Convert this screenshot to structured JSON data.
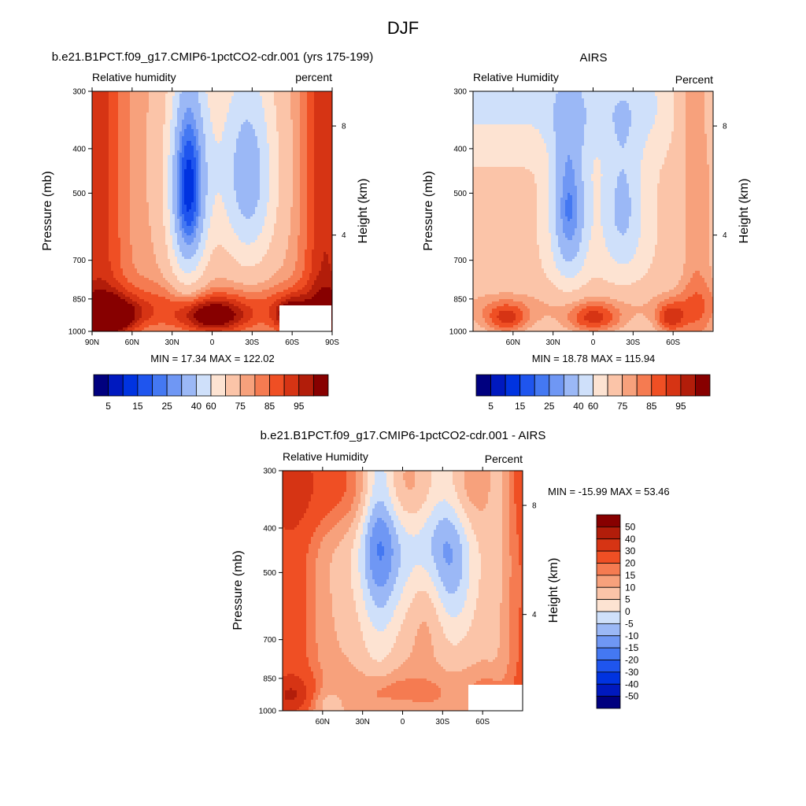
{
  "figure_title": "DJF",
  "colors": {
    "abs_scale": [
      "#00007f",
      "#0019bf",
      "#0033e0",
      "#1f55ee",
      "#4478f2",
      "#6f97f4",
      "#9bb8f6",
      "#cfe0fa",
      "#fde3d2",
      "#fbc4a8",
      "#f7a17c",
      "#f57b51",
      "#ef4f24",
      "#d63414",
      "#b21d0a",
      "#870000"
    ],
    "diff_scale": [
      "#00007f",
      "#0019bf",
      "#0033e0",
      "#1f55ee",
      "#4478f2",
      "#6f97f4",
      "#9bb8f6",
      "#cfe0fa",
      "#fde3d2",
      "#fbc4a8",
      "#f7a17c",
      "#f57b51",
      "#ef4f24",
      "#d63414",
      "#b21d0a",
      "#870000"
    ]
  },
  "chart_data": [
    {
      "type": "heatmap",
      "title": "b.e21.B1PCT.f09_g17.CMIP6-1pctCO2-cdr.001 (yrs 175-199)",
      "left_label": "Relative humidity",
      "right_label": "percent",
      "ylabel": "Pressure (mb)",
      "ylabel_right": "Height (km)",
      "x_ticks": [
        "90N",
        "60N",
        "30N",
        "0",
        "30S",
        "60S",
        "90S"
      ],
      "y_ticks": [
        "300",
        "400",
        "500",
        "700",
        "850",
        "1000"
      ],
      "y_right_ticks": [
        "8",
        "4"
      ],
      "stats": "MIN =  17.34  MAX = 122.02",
      "min": 17.34,
      "max": 122.02,
      "colorbar_labels": [
        "5",
        "15",
        "25",
        "40",
        "60",
        "75",
        "85",
        "95"
      ],
      "colorbar_orientation": "horizontal"
    },
    {
      "type": "heatmap",
      "title": "AIRS",
      "left_label": "Relative Humidity",
      "right_label": "Percent",
      "ylabel": "Pressure (mb)",
      "ylabel_right": "Height (km)",
      "x_ticks": [
        "60N",
        "30N",
        "0",
        "30S",
        "60S"
      ],
      "y_ticks": [
        "300",
        "400",
        "500",
        "700",
        "850",
        "1000"
      ],
      "y_right_ticks": [
        "8",
        "4"
      ],
      "stats": "MIN =  18.78  MAX = 115.94",
      "min": 18.78,
      "max": 115.94,
      "colorbar_labels": [
        "5",
        "15",
        "25",
        "40",
        "60",
        "75",
        "85",
        "95"
      ],
      "colorbar_orientation": "horizontal"
    },
    {
      "type": "heatmap",
      "title": "b.e21.B1PCT.f09_g17.CMIP6-1pctCO2-cdr.001 - AIRS",
      "left_label": "Relative Humidity",
      "right_label": "Percent",
      "ylabel": "Pressure (mb)",
      "ylabel_right": "Height (km)",
      "x_ticks": [
        "60N",
        "30N",
        "0",
        "30S",
        "60S"
      ],
      "y_ticks": [
        "300",
        "400",
        "500",
        "700",
        "850",
        "1000"
      ],
      "y_right_ticks": [
        "8",
        "4"
      ],
      "stats": "MIN = -15.99  MAX =  53.46",
      "min": -15.99,
      "max": 53.46,
      "colorbar_labels": [
        "50",
        "40",
        "30",
        "20",
        "15",
        "10",
        "5",
        "0",
        "-5",
        "-10",
        "-15",
        "-20",
        "-30",
        "-40",
        "-50"
      ],
      "colorbar_orientation": "vertical"
    }
  ]
}
